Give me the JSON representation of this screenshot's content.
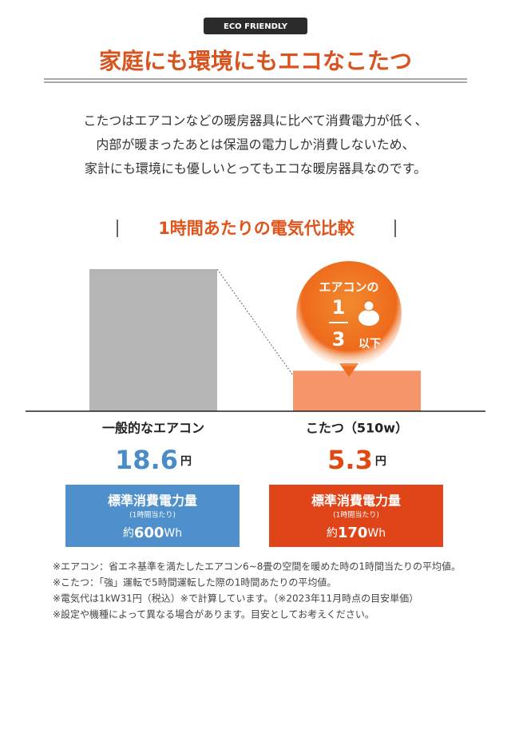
{
  "badge": "ECO FRIENDLY",
  "title": "家庭にも環境にもエコなこたつ",
  "intro": [
    "こたつはエアコンなどの暖房器具に比べて消費電力が低く、",
    "内部が暖まったあとは保温の電力しか消費しないため、",
    "家計にも環境にも優しいとってもエコな暖房器具なのです。"
  ],
  "chart_data": {
    "type": "bar",
    "title": "1時間あたりの電気代比較",
    "categories": [
      "一般的なエアコン",
      "こたつ（510w）"
    ],
    "values": [
      18.6,
      5.3
    ],
    "value_unit": "円",
    "colors": [
      "#b5b5b5",
      "#f7956a"
    ],
    "value_label_colors": [
      "#4a8cc7",
      "#e04a12"
    ],
    "callout": {
      "text": "エアコンの",
      "numerator": 1,
      "denominator": 3,
      "suffix": "以下"
    },
    "power": {
      "label": "標準消費電力量",
      "sub": "(1時間当たり)",
      "prefix": "約",
      "values": [
        600,
        170
      ],
      "unit": "Wh",
      "colors": [
        "#4f8fcb",
        "#e0451a"
      ]
    }
  },
  "notes": [
    "※エアコン：省エネ基準を満たしたエアコン6~8畳の空間を暖めた時の1時間当たりの平均値。",
    "※こたつ：「強」運転で5時間運転した際の1時間あたりの平均値。",
    "※電気代は1kW31円（税込）※で計算しています。（※2023年11月時点の目安単価）",
    "※設定や機種によって異なる場合があります。目安としてお考えください。"
  ]
}
